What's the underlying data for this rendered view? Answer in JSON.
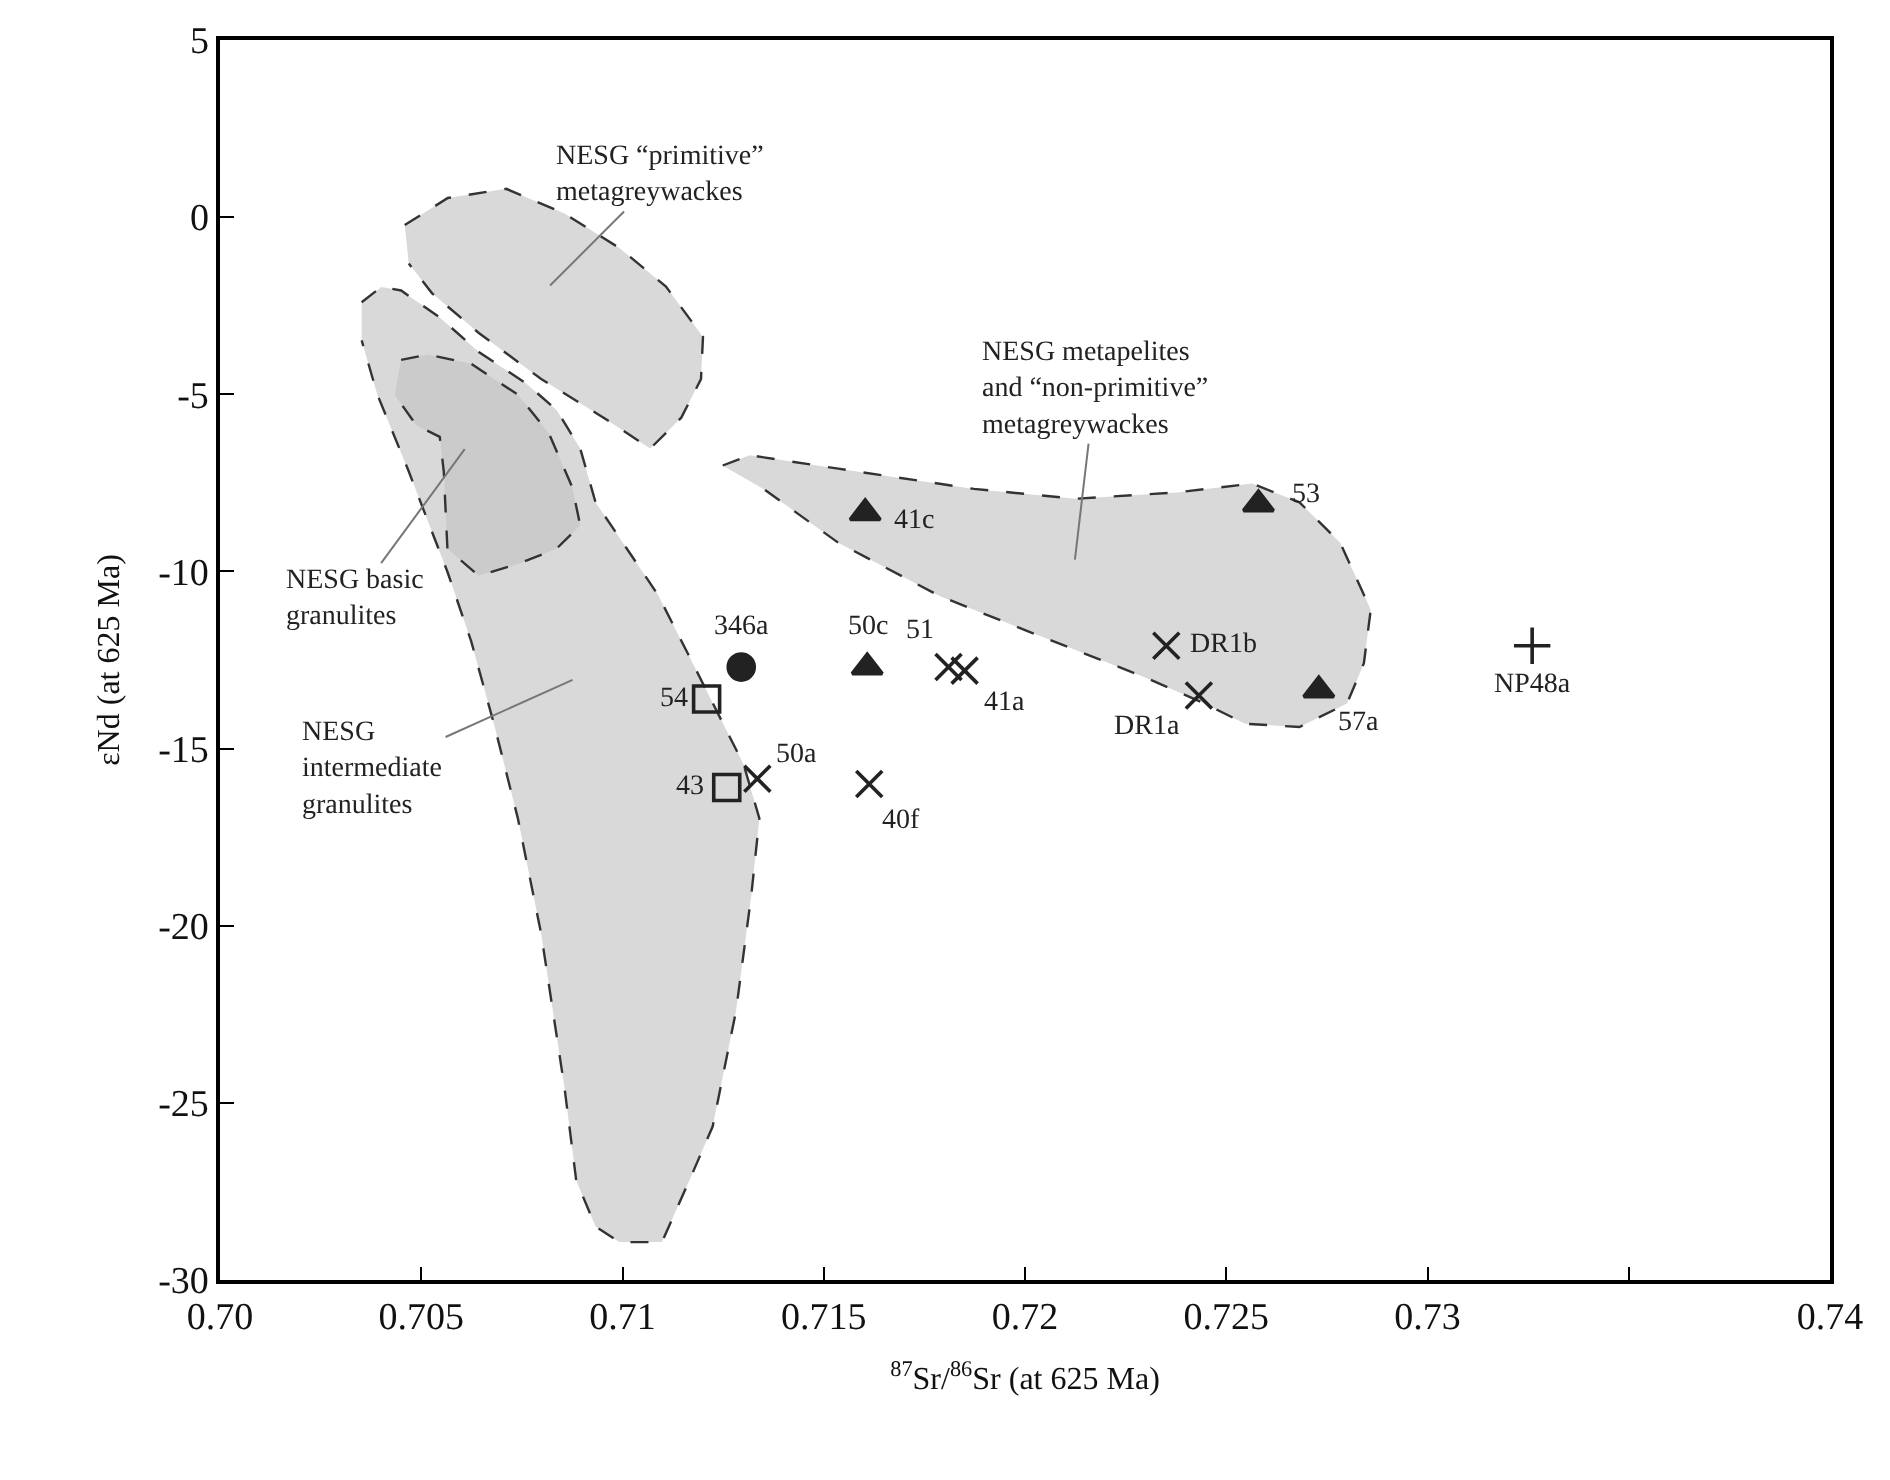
{
  "chart_data": {
    "type": "scatter",
    "xlabel": "$^{87}$Sr/$^{86}$Sr (at 625 Ma)",
    "ylabel": "εNd (at 625 Ma)",
    "xlim": [
      0.7,
      0.74
    ],
    "ylim": [
      -30,
      5
    ],
    "xticks": [
      {
        "value": 0.7,
        "label": "0.70"
      },
      0.705,
      0.71,
      0.715,
      0.72,
      0.725,
      0.73,
      {
        "value": 0.735,
        "label": null
      },
      0.74
    ],
    "yticks": [
      -30,
      -25,
      -20,
      -15,
      -10,
      -5,
      0,
      5
    ],
    "series": [
      {
        "type": "area",
        "color": "#d9d9d9",
        "line_style": "dashed",
        "x": [
          0.70459,
          0.70566,
          0.70711,
          0.70856,
          0.70992,
          0.71108,
          0.712,
          0.71195,
          0.71146,
          0.71069,
          0.70953,
          0.70798,
          0.70643,
          0.70527,
          0.70469
        ],
        "values": [
          -0.22,
          0.54,
          0.8,
          0.1,
          -0.87,
          -1.96,
          -3.38,
          -4.57,
          -5.66,
          -6.53,
          -5.66,
          -4.57,
          -3.27,
          -2.15,
          -1.31
        ]
      },
      {
        "type": "area",
        "color": "#d9d9d9",
        "line_style": "dashed",
        "x": [
          0.70352,
          0.70401,
          0.7045,
          0.70546,
          0.70643,
          0.70759,
          0.70836,
          0.70895,
          0.70933,
          0.71011,
          0.71088,
          0.71166,
          0.71243,
          0.71301,
          0.7134,
          0.7132,
          0.71282,
          0.71224,
          0.71166,
          0.71098,
          0.70992,
          0.70933,
          0.70885,
          0.70856,
          0.70798,
          0.7074,
          0.70682,
          0.70624,
          0.70565,
          0.70469,
          0.70391,
          0.70352
        ],
        "values": [
          -2.4,
          -1.97,
          -2.07,
          -2.83,
          -3.81,
          -4.68,
          -5.44,
          -6.53,
          -8.05,
          -9.36,
          -10.66,
          -12.4,
          -14.14,
          -15.45,
          -16.97,
          -19.14,
          -22.41,
          -25.67,
          -27.19,
          -28.93,
          -28.93,
          -28.49,
          -27.19,
          -24.58,
          -20.23,
          -16.97,
          -14.36,
          -11.97,
          -10.01,
          -7.18,
          -5.01,
          -3.48
        ]
      },
      {
        "type": "area",
        "color": "#cbcbcb",
        "line_style": "dashed",
        "x": [
          0.7045,
          0.70517,
          0.70624,
          0.7074,
          0.70817,
          0.70875,
          0.70895,
          0.70836,
          0.7074,
          0.70643,
          0.70565,
          0.70556,
          0.70546,
          0.70488,
          0.70434
        ],
        "values": [
          -4.03,
          -3.88,
          -4.14,
          -5.01,
          -6.1,
          -7.62,
          -8.7,
          -9.36,
          -9.79,
          -10.12,
          -9.36,
          -7.18,
          -6.2,
          -5.88,
          -5.01
        ]
      },
      {
        "type": "area",
        "color": "#d9d9d9",
        "line_style": "dashed",
        "x": [
          0.71249,
          0.71316,
          0.71536,
          0.71873,
          0.72125,
          0.72378,
          0.72564,
          0.72682,
          0.72783,
          0.72859,
          0.72842,
          0.728,
          0.72682,
          0.72547,
          0.72446,
          0.72294,
          0.72041,
          0.71789,
          0.71536,
          0.7135
        ],
        "values": [
          -7.01,
          -6.72,
          -7.1,
          -7.67,
          -7.95,
          -7.77,
          -7.52,
          -8.05,
          -9.19,
          -11.08,
          -12.59,
          -13.73,
          -14.39,
          -14.3,
          -13.73,
          -12.97,
          -11.84,
          -10.7,
          -9.19,
          -7.67
        ]
      },
      {
        "marker": "circle",
        "color": "#222222",
        "x": [
          0.71295
        ],
        "values": [
          -12.7
        ]
      },
      {
        "marker": "square",
        "color": "#222222",
        "x": [
          0.71209,
          0.71259
        ],
        "values": [
          -13.6,
          -16.1
        ]
      },
      {
        "marker": "cross",
        "color": "#222222",
        "x": [
          0.71335,
          0.71613,
          0.7181,
          0.7185,
          0.72351,
          0.72432
        ],
        "values": [
          -15.85,
          -16.0,
          -12.7,
          -12.8,
          -12.1,
          -13.5
        ]
      },
      {
        "marker": "triangle",
        "color": "#222222",
        "x": [
          0.71603,
          0.71608,
          0.7258,
          0.7273
        ],
        "values": [
          -8.35,
          -12.7,
          -8.1,
          -13.35
        ]
      },
      {
        "marker": "plus",
        "color": "#222222",
        "x": [
          0.7326
        ],
        "values": [
          -12.1
        ]
      }
    ],
    "annotations": [
      "NESG “primitive”\nmetagreywackes",
      "NESG metapelites\nand “non-primitive”\nmetagreywackes",
      "NESG basic\ngranulites",
      "NESG\nintermediate\ngranulites",
      {
        "text": "346a",
        "x": 0.71295,
        "y": -12.7
      },
      {
        "text": "54",
        "x": 0.71209,
        "y": -13.6
      },
      {
        "text": "43",
        "x": 0.71259,
        "y": -16.1
      },
      {
        "text": "50a",
        "x": 0.71335,
        "y": -15.85
      },
      {
        "text": "40f",
        "x": 0.71613,
        "y": -16.0
      },
      {
        "text": "51",
        "x": 0.7181,
        "y": -12.7
      },
      {
        "text": "41a",
        "x": 0.7185,
        "y": -12.8
      },
      {
        "text": "DR1b",
        "x": 0.72351,
        "y": -12.1
      },
      {
        "text": "DR1a",
        "x": 0.72432,
        "y": -13.5
      },
      {
        "text": "41c",
        "x": 0.71603,
        "y": -8.35
      },
      {
        "text": "50c",
        "x": 0.71608,
        "y": -12.7
      },
      {
        "text": "53",
        "x": 0.7258,
        "y": -8.1
      },
      {
        "text": "57a",
        "x": 0.7273,
        "y": -13.35
      },
      {
        "text": "NP48a",
        "x": 0.7326,
        "y": -12.1
      }
    ]
  }
}
